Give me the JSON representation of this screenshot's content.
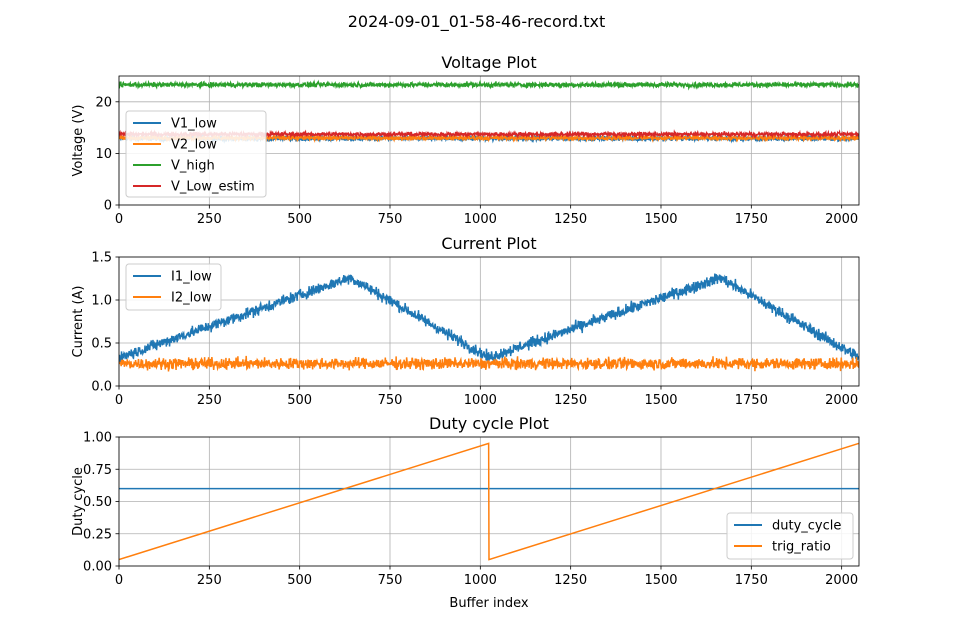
{
  "figure": {
    "suptitle": "2024-09-01_01-58-46-record.txt"
  },
  "chart_data": [
    {
      "type": "line",
      "title": "Voltage Plot",
      "xlabel": "",
      "ylabel": "Voltage (V)",
      "xlim": [
        0,
        2048
      ],
      "ylim": [
        0,
        25
      ],
      "xticks": [
        0,
        250,
        500,
        750,
        1000,
        1250,
        1500,
        1750,
        2000
      ],
      "yticks": [
        0,
        10,
        20
      ],
      "grid": true,
      "legend_position": "center-left",
      "series": [
        {
          "name": "V1_low",
          "color": "#1f77b4",
          "mean": 12.9,
          "noise": 0.35,
          "n": 2048
        },
        {
          "name": "V2_low",
          "color": "#ff7f0e",
          "mean": 13.0,
          "noise": 0.3,
          "n": 2048
        },
        {
          "name": "V_high",
          "color": "#2ca02c",
          "mean": 23.3,
          "noise": 0.35,
          "n": 2048
        },
        {
          "name": "V_Low_estim",
          "color": "#d62728",
          "mean": 13.7,
          "noise": 0.3,
          "n": 2048
        }
      ]
    },
    {
      "type": "line",
      "title": "Current Plot",
      "xlabel": "",
      "ylabel": "Current (A)",
      "xlim": [
        0,
        2048
      ],
      "ylim": [
        0,
        1.5
      ],
      "xticks": [
        0,
        250,
        500,
        750,
        1000,
        1250,
        1500,
        1750,
        2000
      ],
      "yticks": [
        0.0,
        0.5,
        1.0,
        1.5
      ],
      "grid": true,
      "legend_position": "upper-left",
      "series": [
        {
          "name": "I1_low",
          "color": "#1f77b4",
          "shape": "triangle",
          "period": 1024,
          "min": 0.33,
          "max": 1.26,
          "peak_at": 640,
          "noise": 0.05,
          "n": 2048
        },
        {
          "name": "I2_low",
          "color": "#ff7f0e",
          "mean": 0.26,
          "noise": 0.05,
          "n": 2048
        }
      ]
    },
    {
      "type": "line",
      "title": "Duty cycle Plot",
      "xlabel": "Buffer index",
      "ylabel": "Duty cycle",
      "xlim": [
        0,
        2048
      ],
      "ylim": [
        0,
        1.0
      ],
      "xticks": [
        0,
        250,
        500,
        750,
        1000,
        1250,
        1500,
        1750,
        2000
      ],
      "yticks": [
        0.0,
        0.25,
        0.5,
        0.75,
        1.0
      ],
      "grid": true,
      "legend_position": "lower-right",
      "series": [
        {
          "name": "duty_cycle",
          "color": "#1f77b4",
          "x": [
            0,
            2048
          ],
          "y": [
            0.6,
            0.6
          ]
        },
        {
          "name": "trig_ratio",
          "color": "#ff7f0e",
          "x": [
            0,
            1023,
            1024,
            2047
          ],
          "y": [
            0.05,
            0.95,
            0.05,
            0.95
          ]
        }
      ]
    }
  ]
}
